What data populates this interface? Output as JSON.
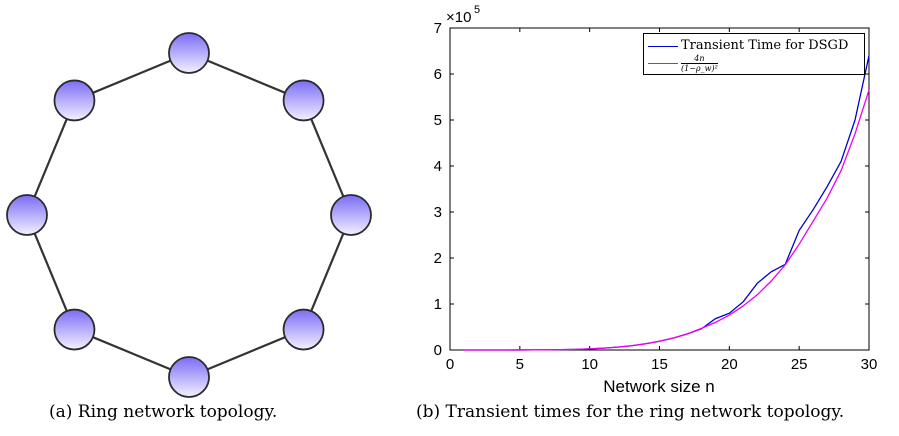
{
  "figure_a": {
    "caption": "(a) Ring network topology.",
    "node_count": 8,
    "colors": {
      "node_top": "#7b6cf6",
      "node_bottom": "#f3f1ff",
      "node_stroke": "#2b2b2b",
      "edge": "#333333"
    }
  },
  "figure_b": {
    "caption": "(b) Transient times for the ring network topology.",
    "exponent_label": {
      "base": "×10",
      "exp": "5"
    },
    "legend": {
      "series1": "Transient Time for DSGD",
      "series2_num": "4n",
      "series2_den": "(1−ρ_w)²"
    }
  },
  "chart_data": {
    "type": "line",
    "title": "",
    "xlabel": "Network size n",
    "ylabel": "",
    "xlim": [
      0,
      30
    ],
    "ylim": [
      0,
      7
    ],
    "y_scale_factor": "×10^5",
    "xticks": [
      0,
      5,
      10,
      15,
      20,
      25,
      30
    ],
    "yticks": [
      0,
      1,
      2,
      3,
      4,
      5,
      6,
      7
    ],
    "grid": false,
    "legend_position": "top-right",
    "series": [
      {
        "name": "Transient Time for DSGD",
        "color": "#0000cc",
        "x": [
          1,
          2,
          3,
          4,
          5,
          6,
          7,
          8,
          9,
          10,
          11,
          12,
          13,
          14,
          15,
          16,
          17,
          18,
          19,
          20,
          21,
          22,
          23,
          24,
          25,
          26,
          27,
          28,
          29,
          30
        ],
        "y": [
          0,
          0,
          0,
          0,
          0.001,
          0.002,
          0.004,
          0.008,
          0.014,
          0.024,
          0.04,
          0.062,
          0.093,
          0.135,
          0.19,
          0.26,
          0.35,
          0.46,
          0.68,
          0.8,
          1.05,
          1.45,
          1.7,
          1.86,
          2.6,
          3.05,
          3.55,
          4.1,
          5.0,
          6.4
        ]
      },
      {
        "name": "4n/(1−ρ_w)²",
        "color": "#ee00ee",
        "x": [
          1,
          2,
          3,
          4,
          5,
          6,
          7,
          8,
          9,
          10,
          11,
          12,
          13,
          14,
          15,
          16,
          17,
          18,
          19,
          20,
          21,
          22,
          23,
          24,
          25,
          26,
          27,
          28,
          29,
          30
        ],
        "y": [
          0,
          0,
          0,
          0,
          0.001,
          0.002,
          0.004,
          0.008,
          0.014,
          0.025,
          0.04,
          0.062,
          0.093,
          0.135,
          0.19,
          0.26,
          0.35,
          0.47,
          0.6,
          0.76,
          0.96,
          1.2,
          1.5,
          1.85,
          2.3,
          2.8,
          3.3,
          3.9,
          4.7,
          5.65
        ]
      }
    ]
  }
}
